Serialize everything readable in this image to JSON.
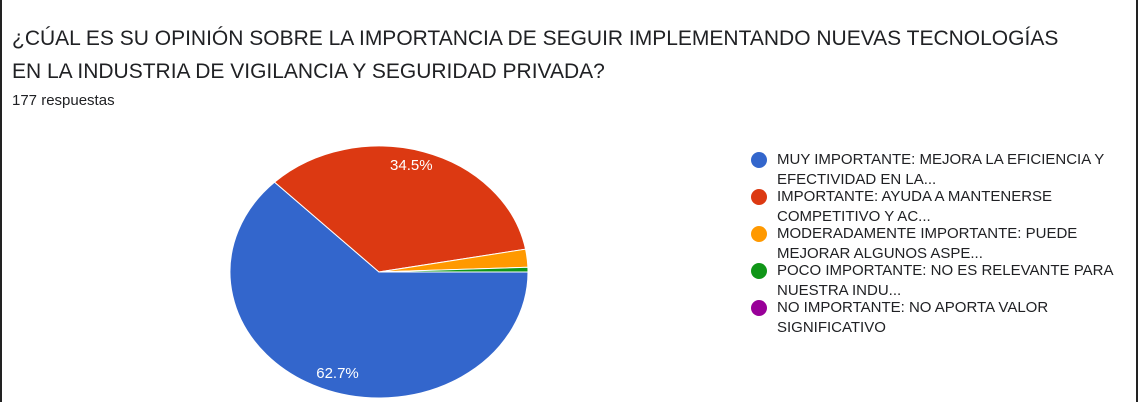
{
  "chart_data": {
    "type": "pie",
    "title": "¿CÚAL ES SU OPINIÓN SOBRE LA IMPORTANCIA DE SEGUIR IMPLEMENTANDO NUEVAS TECNOLOGÍAS EN LA INDUSTRIA DE VIGILANCIA Y SEGURIDAD PRIVADA?",
    "subtitle": "177 respuestas",
    "categories": [
      "MUY IMPORTANTE: MEJORA LA EFICIENCIA Y EFECTIVIDAD EN LA...",
      "IMPORTANTE: AYUDA A MANTENERSE COMPETITIVO Y AC...",
      "MODERADAMENTE IMPORTANTE: PUEDE MEJORAR ALGUNOS ASPE...",
      "POCO IMPORTANTE: NO ES RELEVANTE PARA NUESTRA INDU...",
      "NO IMPORTANTE: NO APORTA VALOR SIGNIFICATIVO"
    ],
    "values": [
      62.7,
      34.5,
      2.3,
      0.6,
      0
    ],
    "value_labels": [
      "62.7%",
      "34.5%",
      null,
      null,
      null
    ],
    "colors": [
      "#3366cc",
      "#dc3912",
      "#ff9900",
      "#109618",
      "#990099"
    ],
    "legend": "right"
  }
}
